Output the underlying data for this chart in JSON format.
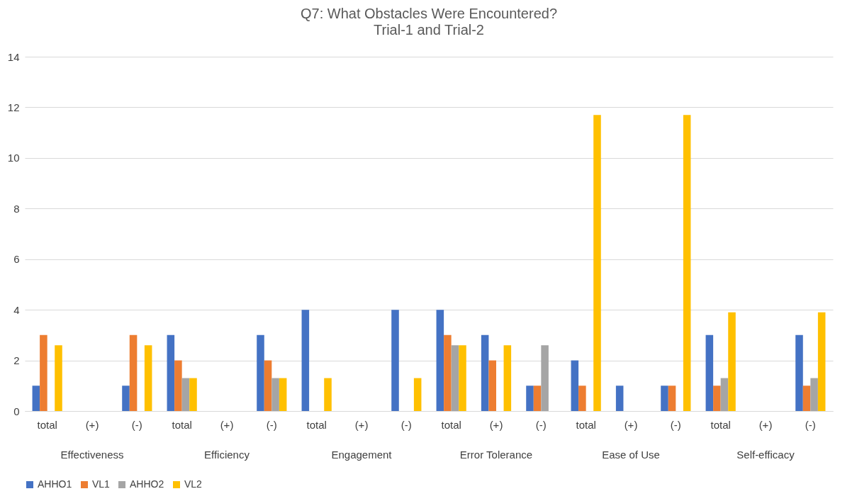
{
  "chart_data": {
    "type": "bar",
    "title": "Q7: What Obstacles Were Encountered?",
    "subtitle": "Trial-1 and Trial-2",
    "categories": [
      "total",
      "(+)",
      "(-)",
      "total",
      "(+)",
      "(-)",
      "total",
      "(+)",
      "(-)",
      "total",
      "(+)",
      "(-)",
      "total",
      "(+)",
      "(-)",
      "total",
      "(+)",
      "(-)"
    ],
    "annotations": [
      "Effectiveness",
      "Efficiency",
      "Engagement",
      "Error Tolerance",
      "Ease of Use",
      "Self-efficacy"
    ],
    "series": [
      {
        "name": "AHHO1",
        "color": "#4472c4",
        "values": [
          1,
          0,
          1,
          3,
          0,
          3,
          4,
          0,
          4,
          4,
          3,
          1,
          2,
          1,
          1,
          3,
          0,
          3
        ]
      },
      {
        "name": "VL1",
        "color": "#ed7d31",
        "values": [
          3,
          0,
          3,
          2,
          0,
          2,
          0,
          0,
          0,
          3,
          2,
          1,
          1,
          0,
          1,
          1,
          0,
          1
        ]
      },
      {
        "name": "AHHO2",
        "color": "#a5a5a5",
        "values": [
          0,
          0,
          0,
          1.3,
          0,
          1.3,
          0,
          0,
          0,
          2.6,
          0,
          2.6,
          0,
          0,
          0,
          1.3,
          0,
          1.3
        ]
      },
      {
        "name": "VL2",
        "color": "#ffc000",
        "values": [
          2.6,
          0,
          2.6,
          1.3,
          0,
          1.3,
          1.3,
          0,
          1.3,
          2.6,
          2.6,
          0,
          11.7,
          0,
          11.7,
          3.9,
          0,
          3.9
        ]
      }
    ],
    "ylim": [
      0,
      14
    ],
    "yticks": [
      0,
      2,
      4,
      6,
      8,
      10,
      12,
      14
    ],
    "grid": "y",
    "legend": "bottom"
  }
}
